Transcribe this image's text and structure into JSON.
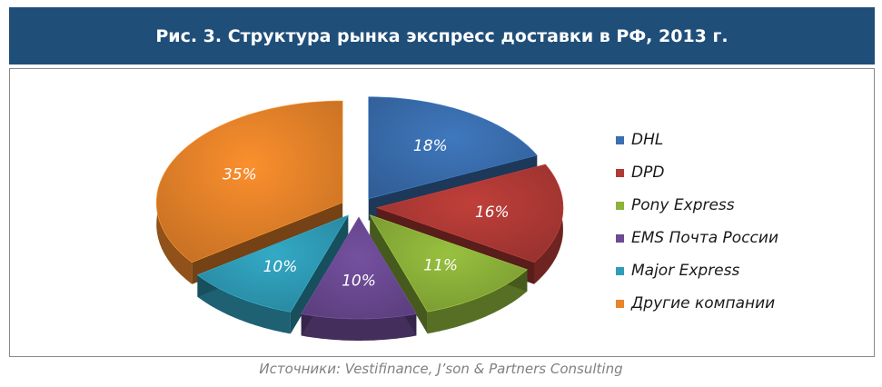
{
  "title": "Рис. 3. Структура рынка экспресс доставки в РФ, 2013 г.",
  "source": "Источники: Vestifinance, J’son & Partners Consulting",
  "chart_data": {
    "type": "pie",
    "title": "Рис. 3. Структура рынка экспресс доставки в РФ, 2013 г.",
    "legend_position": "right",
    "categories": [
      "DHL",
      "DPD",
      "Pony Express",
      "EMS Почта России",
      "Major Express",
      "Другие компании"
    ],
    "values": [
      18,
      16,
      11,
      10,
      10,
      35
    ],
    "value_labels": [
      "18%",
      "16%",
      "11%",
      "10%",
      "10%",
      "35%"
    ],
    "colors": [
      "#3a6fb0",
      "#b23a36",
      "#8db33a",
      "#6c4a94",
      "#2f9db8",
      "#e8842a"
    ],
    "exploded": true
  }
}
